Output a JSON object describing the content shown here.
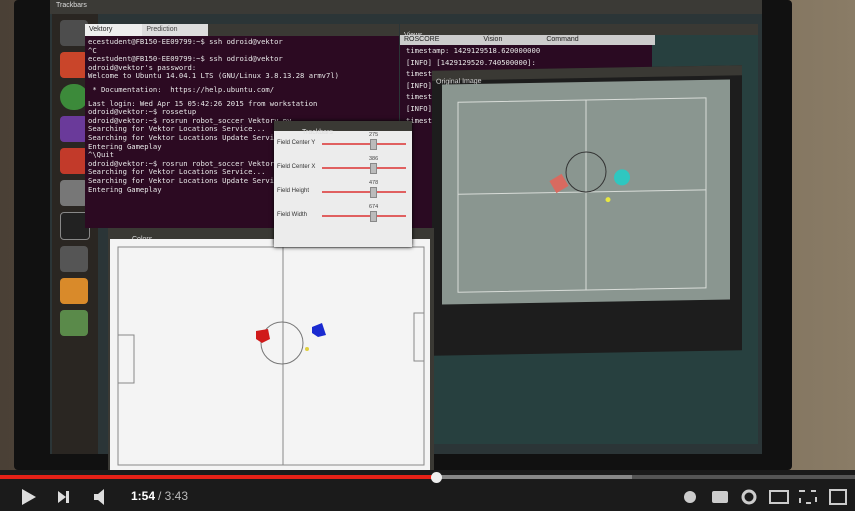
{
  "player": {
    "time_current": "1:54",
    "time_total": "/ 3:43"
  },
  "desktop": {
    "top_bar_title": "Trackbars"
  },
  "terminal": {
    "tabs": [
      "Vektory",
      "Prediction"
    ],
    "lines": [
      "ecestudent@FB150-EE09799:~$ ssh odroid@vektor",
      "^C",
      "ecestudent@FB150-EE09799:~$ ssh odroid@vektor",
      "odroid@vektor's password:",
      "Welcome to Ubuntu 14.04.1 LTS (GNU/Linux 3.8.13.28 armv7l)",
      " * Documentation:  https://help.ubuntu.com/",
      "Last login: Wed Apr 15 05:42:26 2015 from workstation",
      "odroid@vektor:~$ rossetup",
      "odroid@vektor:~$ rosrun robot_soccer Vektory.py",
      "Searching for Vektor Locations Service...",
      "Searching for Vektor Locations Update Service",
      "Entering Gameplay",
      "^\\Quit",
      "odroid@vektor:~$ rosrun robot_soccer Vektory.py",
      "Searching for Vektor Locations Service...",
      "Searching for Vektor Locations Update Service",
      "Entering Gameplay"
    ]
  },
  "trackbars": {
    "title": "Trackbars",
    "sliders": [
      {
        "label": "Field Center Y",
        "value": "275"
      },
      {
        "label": "Field Center X",
        "value": "386"
      },
      {
        "label": "Field Height",
        "value": "478"
      },
      {
        "label": "Field Width",
        "value": "674"
      }
    ]
  },
  "colors_window": {
    "title": "Colors"
  },
  "views_window": {
    "title": "Views",
    "tabs": [
      "ROSCORE",
      "Vision",
      "Command"
    ],
    "lines": [
      "timestamp: 1429129518.620000000",
      "[INFO] [1429129520.740500000]:",
      "timestam",
      "[INFO]",
      "timestam",
      "[INFO]",
      "timestam"
    ]
  },
  "original_image": {
    "title": "Original Image"
  }
}
